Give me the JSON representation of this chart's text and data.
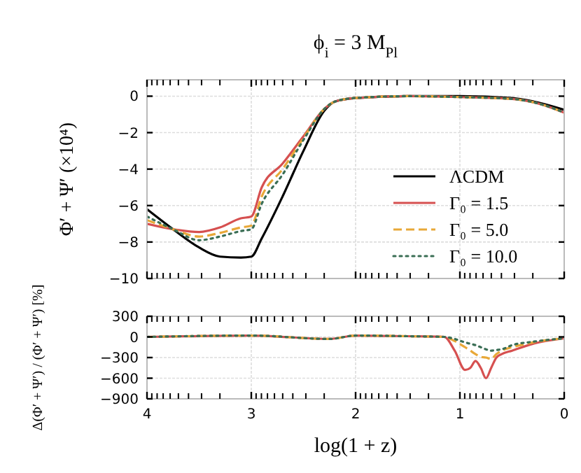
{
  "chart_data": [
    {
      "type": "line",
      "title": "ϕ$_{i}$ = 3 M$_{Pl}$",
      "ylabel": "Φ′ + Ψ′ (×10⁴)",
      "legend": "bottom right",
      "grid": true,
      "tick_labels": "y",
      "xlim": [
        4,
        0
      ],
      "ylim": [
        -10,
        0.9
      ],
      "yticks": [
        -10,
        -8,
        -6,
        -4,
        -2,
        0
      ],
      "xticks": [
        4,
        {
          "value": 3.954,
          "label": null
        },
        {
          "value": 3.903,
          "label": null
        },
        {
          "value": 3.845,
          "label": null
        },
        {
          "value": 3.778,
          "label": null
        },
        {
          "value": 3.699,
          "label": null
        },
        {
          "value": 3.602,
          "label": null
        },
        {
          "value": 3.477,
          "label": null
        },
        {
          "value": 3.301,
          "label": null
        },
        3,
        {
          "value": 2.954,
          "label": null
        },
        {
          "value": 2.903,
          "label": null
        },
        {
          "value": 2.845,
          "label": null
        },
        {
          "value": 2.778,
          "label": null
        },
        {
          "value": 2.699,
          "label": null
        },
        {
          "value": 2.602,
          "label": null
        },
        {
          "value": 2.477,
          "label": null
        },
        {
          "value": 2.301,
          "label": null
        },
        2,
        {
          "value": 1.954,
          "label": null
        },
        {
          "value": 1.903,
          "label": null
        },
        {
          "value": 1.845,
          "label": null
        },
        {
          "value": 1.778,
          "label": null
        },
        {
          "value": 1.699,
          "label": null
        },
        {
          "value": 1.602,
          "label": null
        },
        {
          "value": 1.477,
          "label": null
        },
        {
          "value": 1.301,
          "label": null
        },
        1,
        {
          "value": 0.954,
          "label": null
        },
        {
          "value": 0.903,
          "label": null
        },
        {
          "value": 0.845,
          "label": null
        },
        {
          "value": 0.778,
          "label": null
        },
        {
          "value": 0.699,
          "label": null
        },
        {
          "value": 0.602,
          "label": null
        },
        {
          "value": 0.477,
          "label": null
        },
        {
          "value": 0.301,
          "label": null
        },
        0
      ],
      "x": [
        4,
        3.75,
        3.5,
        3.3,
        3.1,
        3,
        2.9,
        2.7,
        2.5,
        2.3,
        2.2,
        2,
        1.5,
        1,
        0.5,
        0.25,
        0
      ],
      "series": [
        {
          "name": "ΛCDM",
          "color": "#000000",
          "line_style": "solid",
          "values": [
            -6.2,
            -7.3,
            -8.3,
            -8.8,
            -8.85,
            -8.8,
            -7.8,
            -5.5,
            -3.0,
            -0.8,
            -0.3,
            -0.1,
            0,
            0,
            -0.1,
            -0.35,
            -0.75
          ]
        },
        {
          "name": "Γ₀ = 1.5",
          "color": "#d65050",
          "line_style": "solid",
          "values": [
            -7.0,
            -7.3,
            -7.45,
            -7.2,
            -6.7,
            -6.6,
            -5.0,
            -3.7,
            -2.2,
            -0.7,
            -0.3,
            -0.1,
            0,
            -0.05,
            -0.15,
            -0.4,
            -0.9
          ]
        },
        {
          "name": "Γ₀ = 5.0",
          "color": "#e8a838",
          "line_style": "dashed",
          "values": [
            -6.8,
            -7.3,
            -7.7,
            -7.5,
            -7.2,
            -7.1,
            -5.5,
            -4.0,
            -2.3,
            -0.7,
            -0.3,
            -0.1,
            0,
            -0.05,
            -0.15,
            -0.4,
            -0.9
          ]
        },
        {
          "name": "Γ₀ = 10.0",
          "color": "#3a6e55",
          "line_style": "dotted",
          "values": [
            -6.6,
            -7.3,
            -7.9,
            -7.7,
            -7.4,
            -7.3,
            -5.9,
            -4.3,
            -2.4,
            -0.7,
            -0.3,
            -0.1,
            0,
            -0.05,
            -0.15,
            -0.4,
            -0.9
          ]
        }
      ]
    },
    {
      "type": "line",
      "ylabel": "Δ(Φ′ + Ψ′) / (Φ′ + Ψ′) [%]",
      "xlabel": "log(1 + z)",
      "grid": true,
      "xlim": [
        4,
        0
      ],
      "ylim": [
        -900,
        300
      ],
      "yticks": [
        -900,
        -600,
        -300,
        0,
        300
      ],
      "xticks": [
        4,
        {
          "value": 3.954,
          "label": null
        },
        {
          "value": 3.903,
          "label": null
        },
        {
          "value": 3.845,
          "label": null
        },
        {
          "value": 3.778,
          "label": null
        },
        {
          "value": 3.699,
          "label": null
        },
        {
          "value": 3.602,
          "label": null
        },
        {
          "value": 3.477,
          "label": null
        },
        {
          "value": 3.301,
          "label": null
        },
        3,
        {
          "value": 2.954,
          "label": null
        },
        {
          "value": 2.903,
          "label": null
        },
        {
          "value": 2.845,
          "label": null
        },
        {
          "value": 2.778,
          "label": null
        },
        {
          "value": 2.699,
          "label": null
        },
        {
          "value": 2.602,
          "label": null
        },
        {
          "value": 2.477,
          "label": null
        },
        {
          "value": 2.301,
          "label": null
        },
        2,
        {
          "value": 1.954,
          "label": null
        },
        {
          "value": 1.903,
          "label": null
        },
        {
          "value": 1.845,
          "label": null
        },
        {
          "value": 1.778,
          "label": null
        },
        {
          "value": 1.699,
          "label": null
        },
        {
          "value": 1.602,
          "label": null
        },
        {
          "value": 1.477,
          "label": null
        },
        {
          "value": 1.301,
          "label": null
        },
        1,
        {
          "value": 0.954,
          "label": null
        },
        {
          "value": 0.903,
          "label": null
        },
        {
          "value": 0.845,
          "label": null
        },
        {
          "value": 0.778,
          "label": null
        },
        {
          "value": 0.699,
          "label": null
        },
        {
          "value": 0.602,
          "label": null
        },
        {
          "value": 0.477,
          "label": null
        },
        {
          "value": 0.301,
          "label": null
        },
        0
      ],
      "x": [
        4,
        3,
        2.25,
        2,
        1.5,
        1.15,
        1.05,
        0.95,
        0.9,
        0.85,
        0.8,
        0.75,
        0.7,
        0.65,
        0.6,
        0.5,
        0.3,
        0
      ],
      "series": [
        {
          "color": "#d65050",
          "line_style": "solid",
          "values": [
            0,
            20,
            -30,
            20,
            10,
            0,
            -200,
            -480,
            -450,
            -350,
            -450,
            -600,
            -450,
            -300,
            -250,
            -200,
            -100,
            -20
          ]
        },
        {
          "color": "#e8a838",
          "line_style": "dashed",
          "values": [
            0,
            20,
            -30,
            20,
            10,
            0,
            -60,
            -150,
            -200,
            -250,
            -290,
            -300,
            -320,
            -250,
            -200,
            -150,
            -80,
            -20
          ]
        },
        {
          "color": "#3a6e55",
          "line_style": "dotted",
          "values": [
            0,
            20,
            -30,
            20,
            10,
            0,
            -30,
            -80,
            -100,
            -120,
            -150,
            -180,
            -200,
            -190,
            -180,
            -120,
            -70,
            -20
          ]
        }
      ]
    }
  ]
}
